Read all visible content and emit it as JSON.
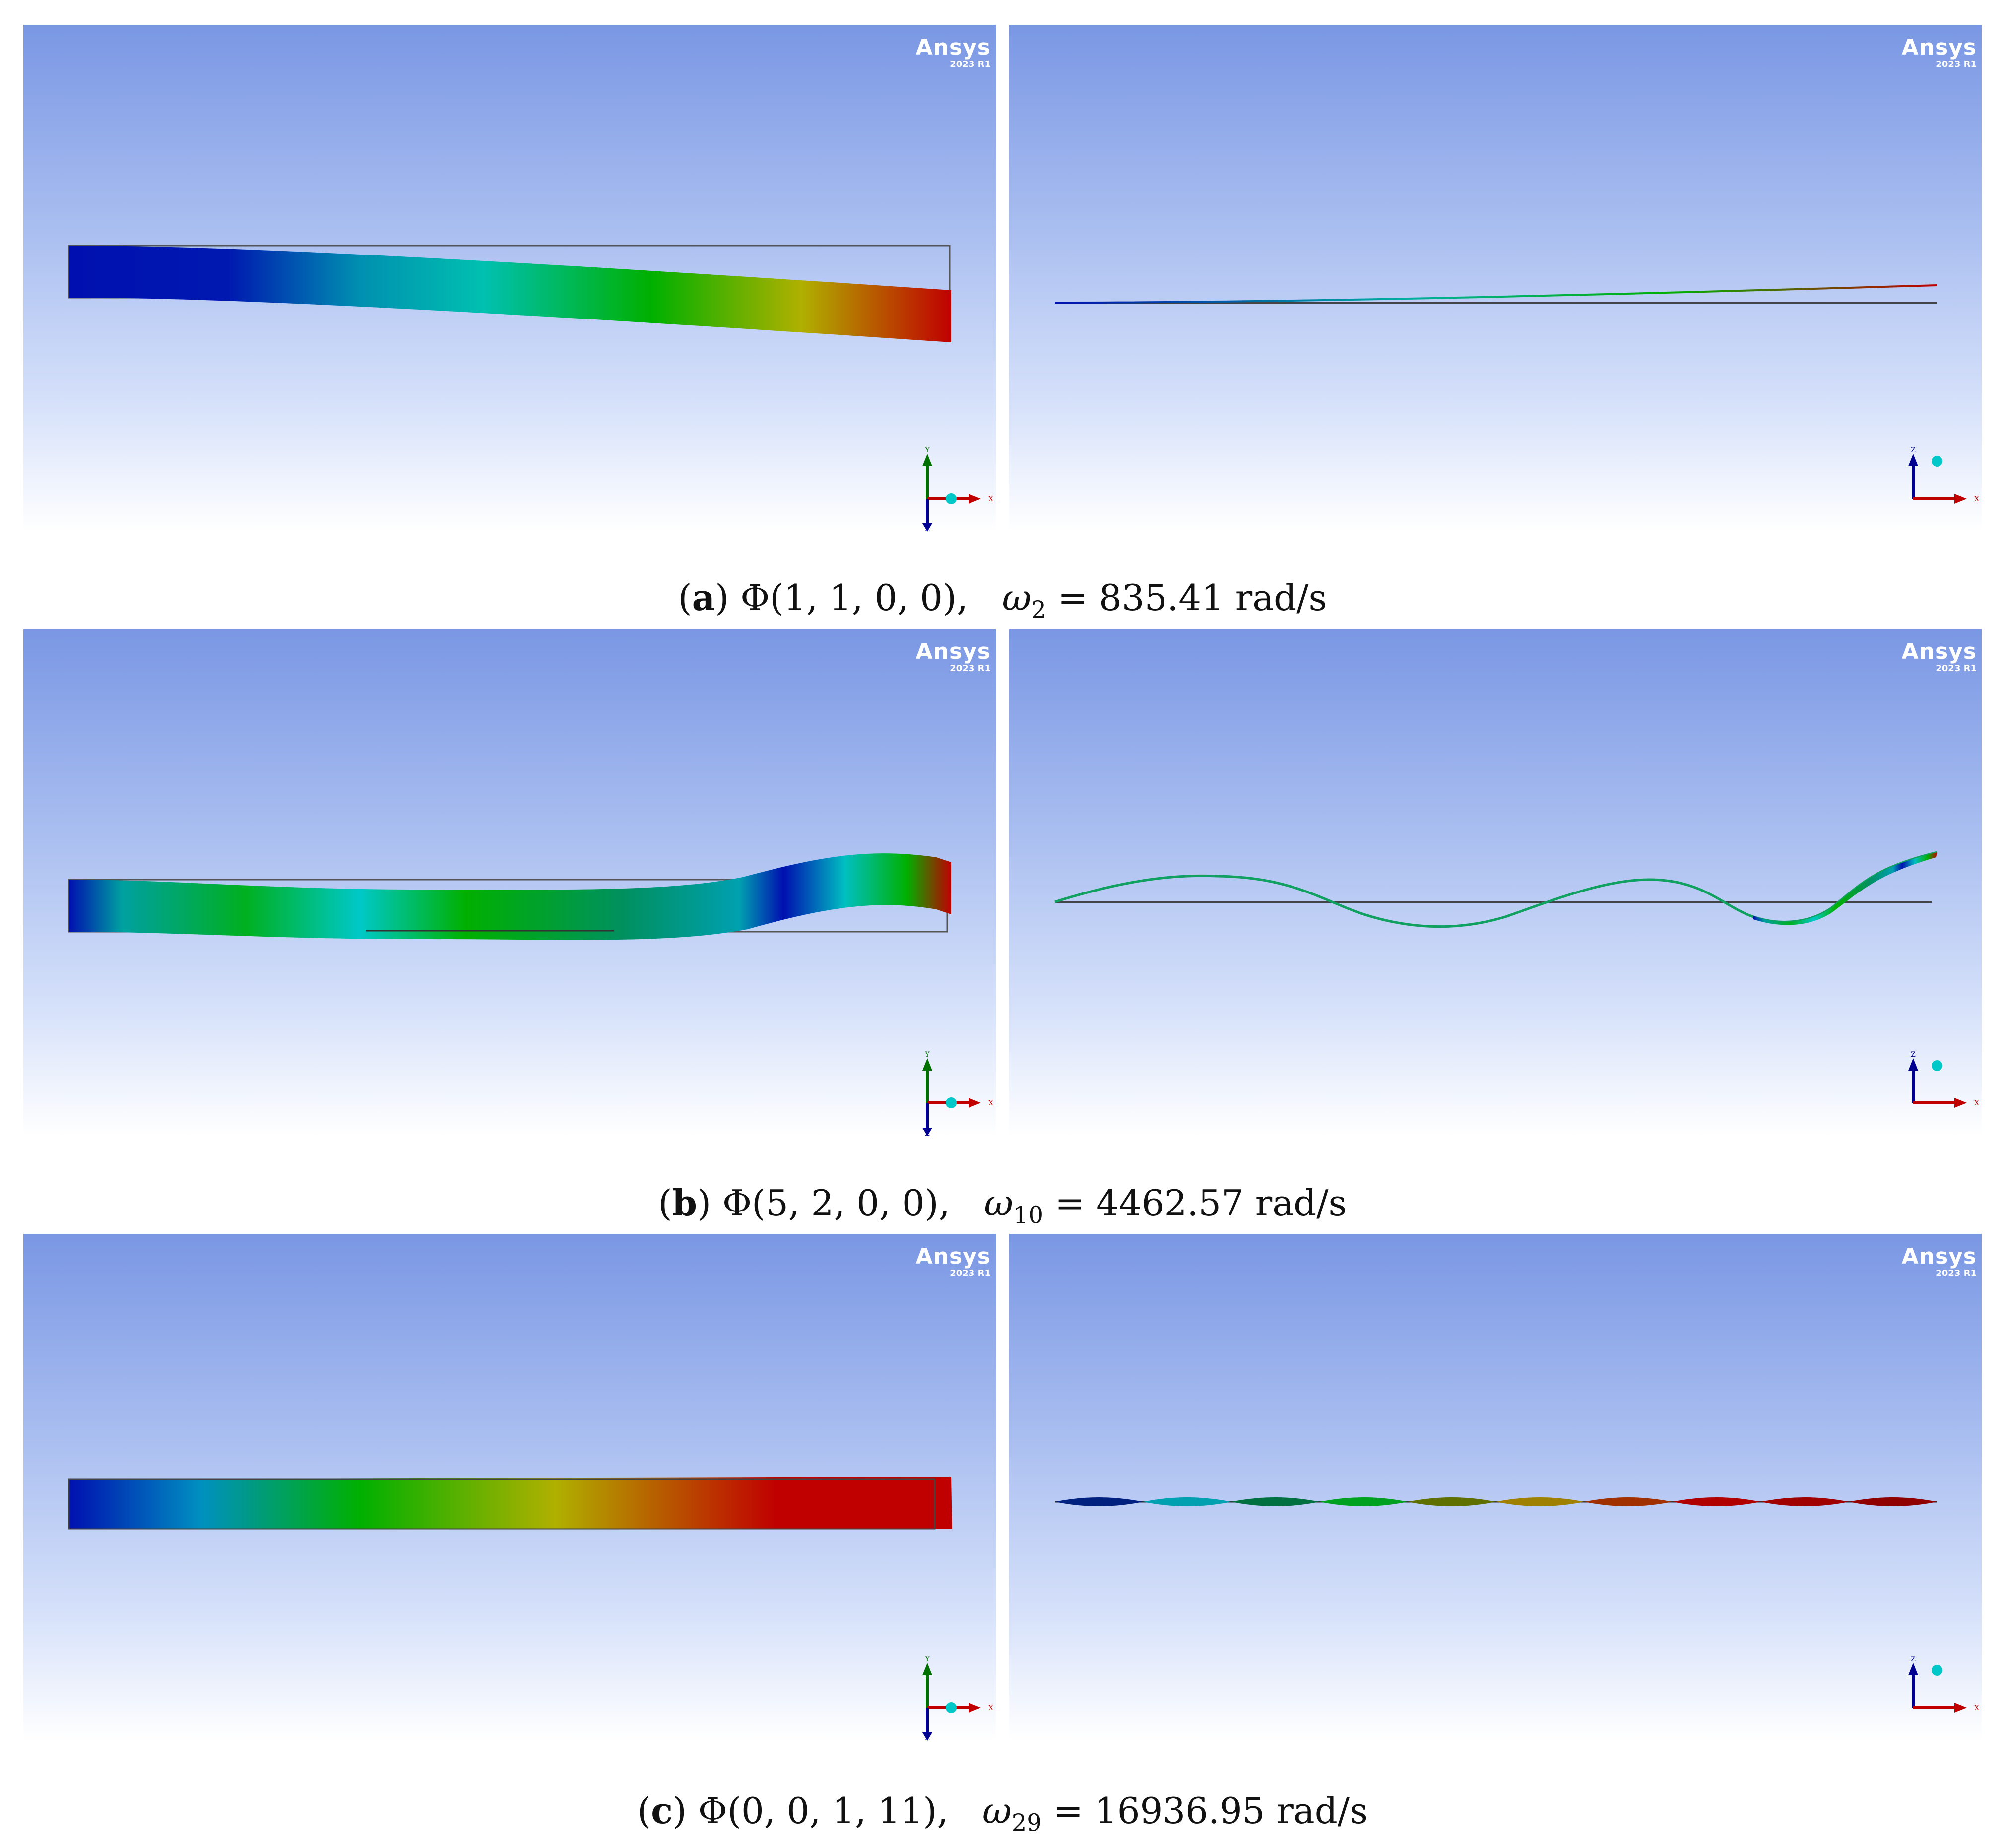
{
  "logo": {
    "brand": "Ansys",
    "version": "2023 R1"
  },
  "rows": [
    {
      "caption": {
        "letter": "a",
        "phi": "Φ(1, 1, 0, 0),",
        "omega": "ω",
        "sub": "2",
        "value": "= 835.41 rad/s"
      },
      "left_triad": {
        "up": "Y",
        "right": "X",
        "down": "Z"
      },
      "right_triad": {
        "up": "Z",
        "right": "X"
      }
    },
    {
      "caption": {
        "letter": "b",
        "phi": "Φ(5, 2, 0, 0),",
        "omega": "ω",
        "sub": "10",
        "value": "= 4462.57 rad/s"
      },
      "left_triad": {
        "up": "Y",
        "right": "X",
        "down": "Z"
      },
      "right_triad": {
        "up": "Z",
        "right": "X"
      }
    },
    {
      "caption": {
        "letter": "c",
        "phi": "Φ(0, 0, 1, 11),",
        "omega": "ω",
        "sub": "29",
        "value": "= 16936.95 rad/s"
      },
      "left_triad": {
        "up": "Y",
        "right": "X",
        "down": "Z"
      },
      "right_triad": {
        "up": "Z",
        "right": "X"
      }
    }
  ],
  "colors": {
    "blue": "#0010b0",
    "cyan": "#00c0c0",
    "green": "#00b000",
    "yellow": "#b0b000",
    "red": "#c00000"
  }
}
